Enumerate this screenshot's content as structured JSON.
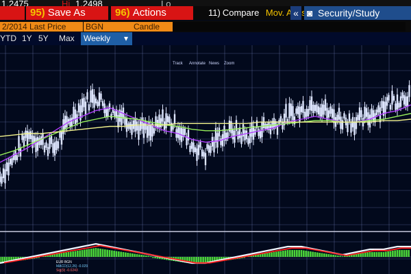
{
  "quote": {
    "last": "1.2475",
    "hi_label": "Hi",
    "hi": "1.2498",
    "partial": "Lo"
  },
  "menu": {
    "save_num": "95)",
    "save": "Save As",
    "actions_num": "96)",
    "actions": "Actions",
    "compare_num": "11)",
    "compare": "Compare",
    "mov_avgs": "Mov. Avgs",
    "chevrons": "«",
    "security_study": "Security/Study"
  },
  "settings": {
    "date_price": "2/2014 Last Price",
    "ticker": "BGN",
    "type": "Candle"
  },
  "timeframes": [
    "YTD",
    "1Y",
    "5Y",
    "Max"
  ],
  "frequency": "Weekly",
  "tools": [
    "Track",
    "Annotate",
    "News",
    "Zoom"
  ],
  "macd_legend": {
    "title": "EUR BGN",
    "line1": "MACD(12,26) -0.029",
    "line2": "Sig(9) -0.0243"
  },
  "colors": {
    "red_button": "#d81414",
    "orange_field": "#f08a16",
    "weekly_bg": "#1f5fa6",
    "bg": "#02091c",
    "grid": "#7b86c8",
    "price": "#dfe7ff",
    "ma_purple": "#b13cff",
    "ma_green": "#97f05b",
    "ma_yellow": "#f4f48e",
    "hist_green": "#4bd53a",
    "macd_red": "#ff2020"
  },
  "icons": [
    "camera-icon",
    "chevron-left-icon",
    "dropdown-icon"
  ],
  "chart_data": {
    "type": "line",
    "title": "",
    "xlabel": "",
    "ylabel": "",
    "ylim": [
      0,
      100
    ],
    "x": [
      0,
      5,
      10,
      15,
      20,
      25,
      30,
      35,
      40,
      45,
      50,
      55,
      60,
      65,
      70,
      75,
      80,
      85,
      90,
      95,
      100,
      105,
      110,
      115,
      120,
      125,
      130,
      135,
      140,
      145,
      150
    ],
    "series": [
      {
        "values": [
          20,
          32,
          50,
          44,
          40,
          58,
          70,
          76,
          66,
          62,
          55,
          50,
          60,
          54,
          42,
          36,
          48,
          52,
          48,
          54,
          56,
          62,
          66,
          72,
          64,
          60,
          58,
          62,
          70,
          74,
          78
        ]
      },
      {
        "values": [
          30,
          35,
          40,
          46,
          52,
          58,
          62,
          66,
          68,
          64,
          60,
          56,
          52,
          50,
          46,
          44,
          45,
          48,
          50,
          52,
          54,
          58,
          60,
          62,
          60,
          58,
          58,
          60,
          64,
          66,
          70
        ]
      },
      {
        "values": [
          35,
          38,
          42,
          46,
          50,
          54,
          58,
          60,
          62,
          61,
          60,
          58,
          56,
          55,
          53,
          52,
          52,
          53,
          54,
          55,
          56,
          57,
          58,
          59,
          59,
          58,
          58,
          59,
          60,
          62,
          64
        ]
      },
      {
        "values": [
          48,
          49,
          50,
          50,
          51,
          52,
          53,
          54,
          55,
          55,
          56,
          56,
          56,
          57,
          57,
          57,
          57,
          57,
          57,
          58,
          58,
          58,
          58,
          58,
          58,
          58,
          58,
          58,
          59,
          59,
          60
        ]
      }
    ],
    "macd_hist": [
      -3,
      -2,
      -1,
      0,
      1,
      2,
      3,
      4,
      3,
      2,
      1,
      0,
      -1,
      -2,
      -3,
      -3,
      -2,
      -1,
      0,
      1,
      2,
      3,
      3,
      2,
      1,
      0,
      1,
      2,
      2,
      3,
      3
    ]
  }
}
